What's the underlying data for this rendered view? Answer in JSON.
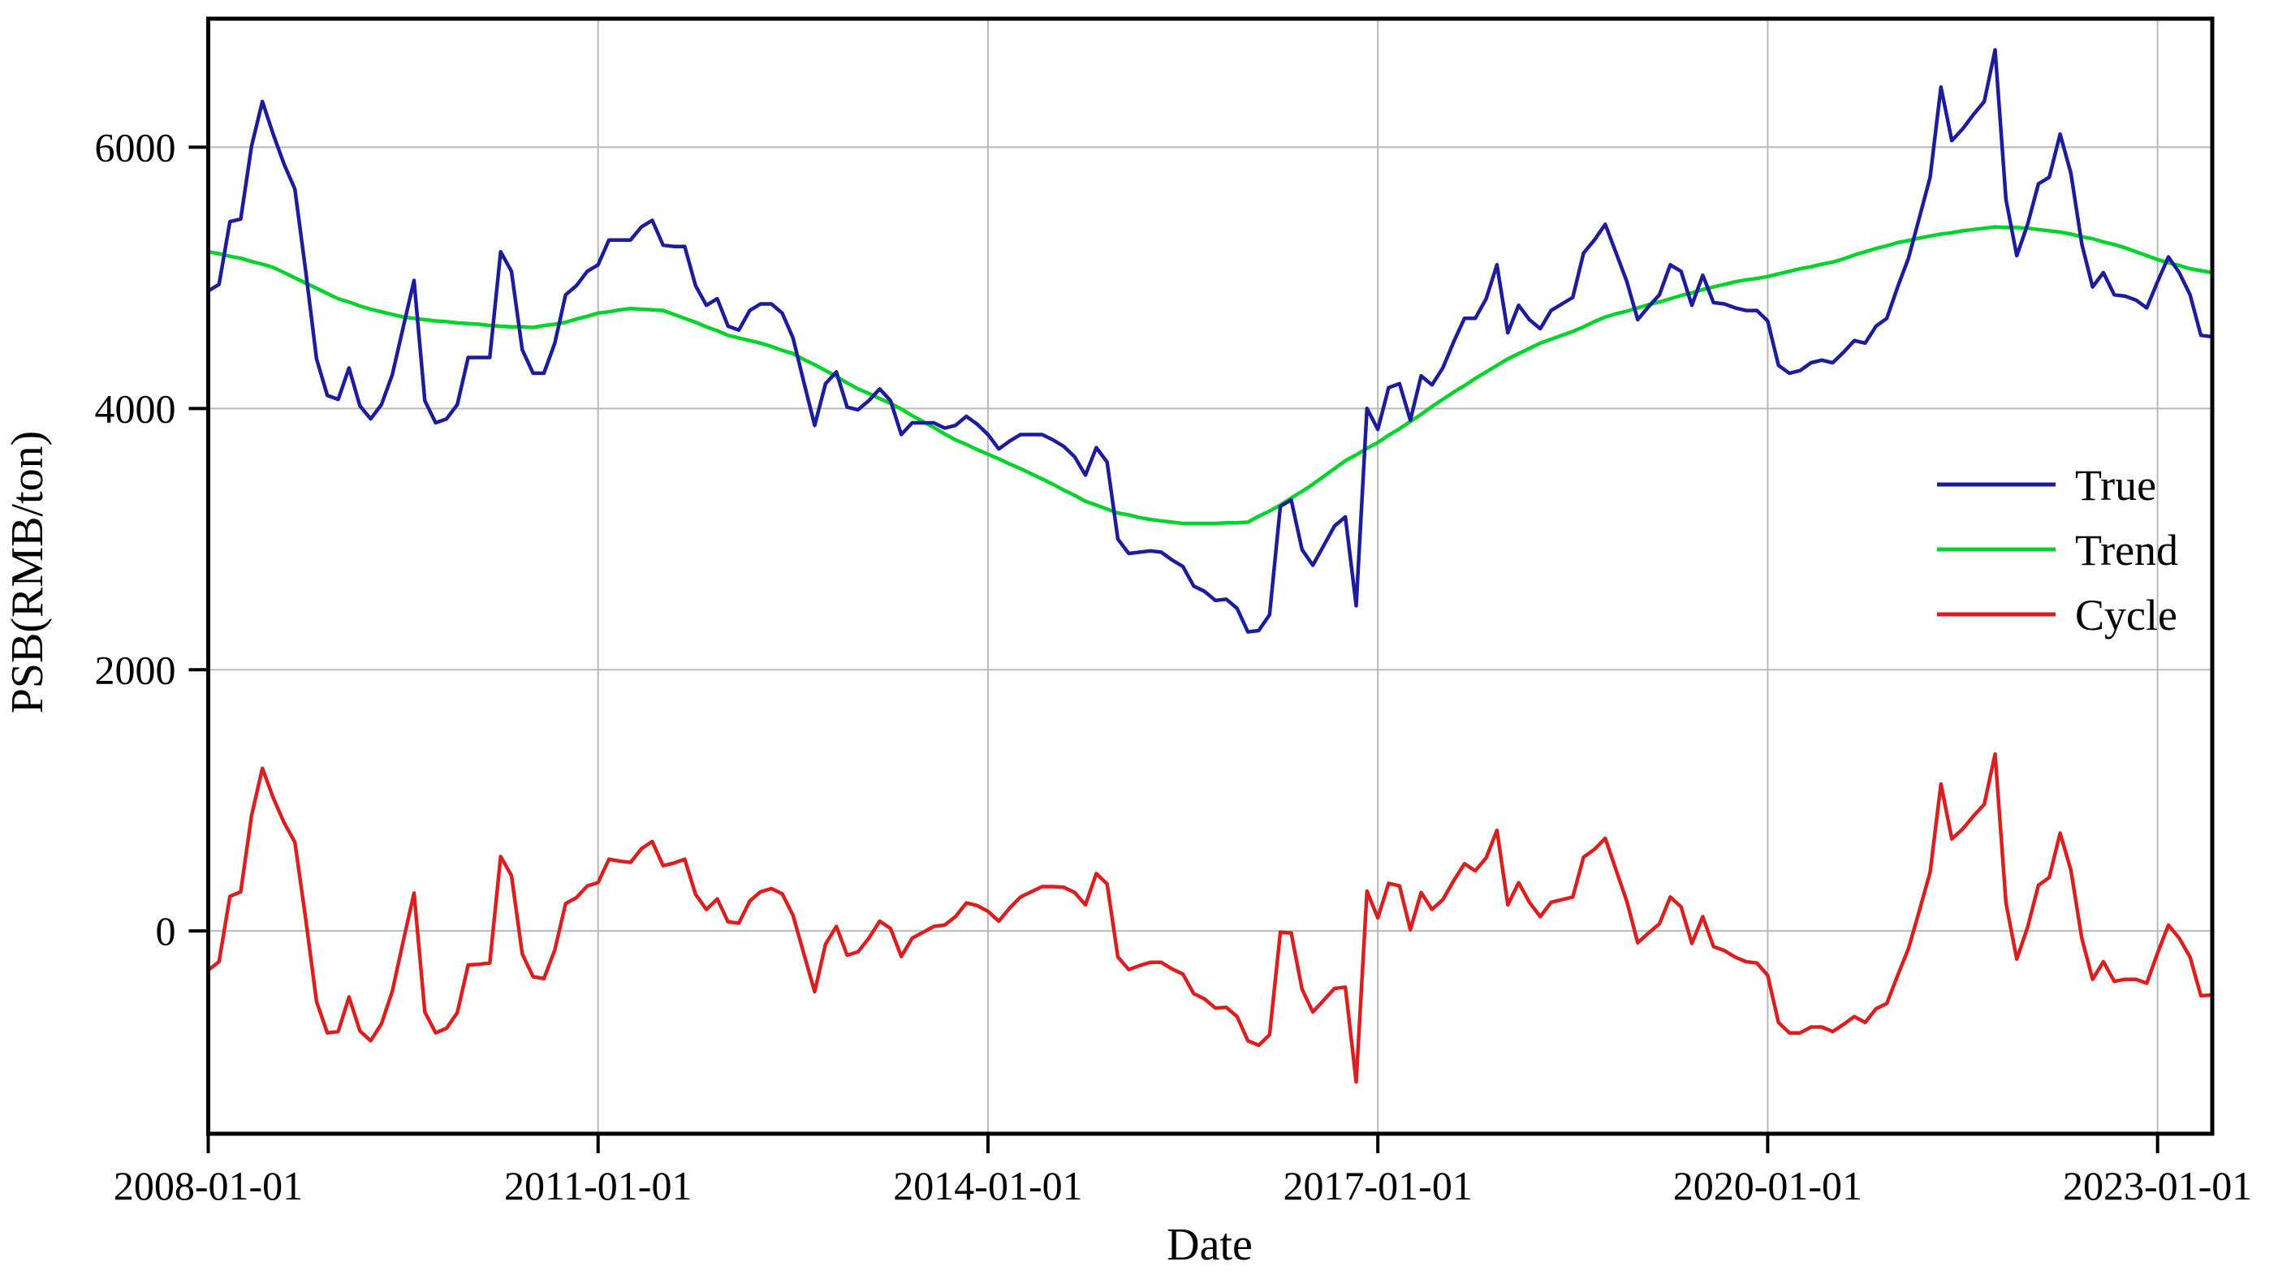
{
  "chart_data": {
    "type": "line",
    "title": "",
    "xlabel": "Date",
    "ylabel": "PSB(RMB/ton)",
    "x_start": "2008-01",
    "x_end": "2023-06",
    "x_freq": "monthly",
    "n_points": 186,
    "x_tick_labels": [
      "2008-01-01",
      "2011-01-01",
      "2014-01-01",
      "2017-01-01",
      "2020-01-01",
      "2023-01-01"
    ],
    "x_tick_month_index": [
      0,
      36,
      72,
      108,
      144,
      180
    ],
    "y_ticks": [
      0,
      2000,
      4000,
      6000
    ],
    "ylim": [
      -1552,
      6984
    ],
    "xlim_month_index": [
      0,
      185.05
    ],
    "grid": "on",
    "legend_position": "center-right",
    "colors": {
      "true": "#1c1c9c",
      "trend": "#00d32a",
      "cycle": "#dc1e1e",
      "grid": "#b9b9b9",
      "spine": "#000000"
    },
    "series": [
      {
        "name": "True",
        "color_key": "true",
        "values": [
          4900,
          4950,
          5430,
          5450,
          6010,
          6350,
          6100,
          5870,
          5680,
          5050,
          4380,
          4100,
          4070,
          4310,
          4020,
          3920,
          4030,
          4260,
          4620,
          4980,
          4060,
          3890,
          3920,
          4030,
          4390,
          4390,
          4390,
          5200,
          5050,
          4450,
          4270,
          4270,
          4500,
          4870,
          4940,
          5050,
          5100,
          5290,
          5290,
          5290,
          5390,
          5440,
          5250,
          5240,
          5240,
          4940,
          4790,
          4840,
          4630,
          4600,
          4750,
          4800,
          4800,
          4730,
          4540,
          4200,
          3870,
          4190,
          4280,
          4010,
          3990,
          4060,
          4150,
          4060,
          3800,
          3890,
          3890,
          3890,
          3850,
          3870,
          3940,
          3880,
          3800,
          3690,
          3750,
          3800,
          3800,
          3800,
          3760,
          3710,
          3630,
          3490,
          3700,
          3590,
          3000,
          2890,
          2900,
          2910,
          2900,
          2840,
          2790,
          2640,
          2600,
          2530,
          2540,
          2470,
          2290,
          2300,
          2420,
          3250,
          3300,
          2920,
          2800,
          2950,
          3100,
          3170,
          2490,
          4000,
          3840,
          4160,
          4190,
          3910,
          4250,
          4180,
          4310,
          4510,
          4690,
          4690,
          4840,
          5100,
          4580,
          4790,
          4680,
          4610,
          4750,
          4800,
          4850,
          5190,
          5290,
          5410,
          5190,
          4970,
          4680,
          4780,
          4870,
          5100,
          5050,
          4790,
          5020,
          4810,
          4800,
          4770,
          4750,
          4750,
          4670,
          4330,
          4270,
          4290,
          4350,
          4370,
          4350,
          4430,
          4520,
          4500,
          4630,
          4690,
          4930,
          5150,
          5460,
          5770,
          6460,
          6050,
          6140,
          6250,
          6350,
          6745,
          5600,
          5170,
          5410,
          5720,
          5770,
          6100,
          5800,
          5260,
          4930,
          5040,
          4870,
          4860,
          4830,
          4770,
          4970,
          5160,
          5040,
          4870,
          4560,
          4550
        ]
      },
      {
        "name": "Trend",
        "color_key": "trend",
        "values": [
          5200,
          5185,
          5165,
          5150,
          5125,
          5105,
          5080,
          5040,
          5000,
          4960,
          4920,
          4880,
          4840,
          4815,
          4785,
          4760,
          4740,
          4720,
          4700,
          4690,
          4680,
          4670,
          4665,
          4655,
          4650,
          4645,
          4635,
          4630,
          4625,
          4625,
          4620,
          4635,
          4645,
          4660,
          4685,
          4705,
          4730,
          4740,
          4755,
          4765,
          4760,
          4755,
          4750,
          4720,
          4690,
          4660,
          4625,
          4595,
          4560,
          4540,
          4520,
          4500,
          4475,
          4445,
          4420,
          4375,
          4335,
          4290,
          4245,
          4195,
          4150,
          4115,
          4075,
          4040,
          3995,
          3945,
          3900,
          3855,
          3805,
          3760,
          3725,
          3685,
          3650,
          3615,
          3575,
          3540,
          3500,
          3460,
          3420,
          3375,
          3335,
          3290,
          3260,
          3230,
          3200,
          3185,
          3165,
          3150,
          3140,
          3130,
          3120,
          3120,
          3120,
          3120,
          3125,
          3125,
          3130,
          3175,
          3215,
          3260,
          3315,
          3365,
          3420,
          3480,
          3540,
          3600,
          3645,
          3695,
          3740,
          3795,
          3845,
          3900,
          3955,
          4015,
          4070,
          4125,
          4175,
          4230,
          4280,
          4330,
          4380,
          4420,
          4460,
          4500,
          4530,
          4560,
          4590,
          4625,
          4665,
          4700,
          4725,
          4745,
          4770,
          4795,
          4815,
          4840,
          4865,
          4885,
          4910,
          4930,
          4950,
          4970,
          4985,
          4995,
          5010,
          5030,
          5050,
          5070,
          5085,
          5105,
          5120,
          5145,
          5175,
          5200,
          5225,
          5245,
          5270,
          5285,
          5305,
          5320,
          5335,
          5345,
          5360,
          5370,
          5380,
          5390,
          5385,
          5385,
          5380,
          5370,
          5360,
          5350,
          5335,
          5315,
          5300,
          5275,
          5255,
          5230,
          5200,
          5170,
          5140,
          5115,
          5095,
          5070,
          5055,
          5040
        ]
      },
      {
        "name": "Cycle",
        "color_key": "cycle",
        "values": [
          -300,
          -235,
          265,
          300,
          885,
          1245,
          1020,
          830,
          680,
          90,
          -540,
          -780,
          -770,
          -505,
          -765,
          -840,
          -710,
          -460,
          -80,
          290,
          -620,
          -780,
          -745,
          -625,
          -260,
          -255,
          -245,
          570,
          425,
          -175,
          -350,
          -365,
          -145,
          210,
          255,
          345,
          370,
          550,
          535,
          525,
          630,
          685,
          500,
          520,
          550,
          280,
          165,
          245,
          70,
          60,
          230,
          300,
          325,
          285,
          120,
          -175,
          -465,
          -100,
          35,
          -185,
          -160,
          -55,
          75,
          20,
          -195,
          -55,
          -10,
          35,
          45,
          110,
          215,
          195,
          150,
          75,
          175,
          260,
          300,
          340,
          340,
          335,
          295,
          200,
          440,
          360,
          -200,
          -295,
          -265,
          -240,
          -240,
          -290,
          -330,
          -480,
          -520,
          -590,
          -585,
          -655,
          -840,
          -875,
          -795,
          -10,
          -15,
          -445,
          -620,
          -530,
          -440,
          -430,
          -1155,
          305,
          100,
          365,
          345,
          10,
          295,
          165,
          240,
          385,
          515,
          460,
          560,
          770,
          200,
          370,
          220,
          110,
          220,
          240,
          260,
          565,
          625,
          710,
          465,
          225,
          -90,
          -15,
          55,
          260,
          185,
          -95,
          110,
          -120,
          -150,
          -200,
          -235,
          -245,
          -340,
          -700,
          -780,
          -780,
          -735,
          -735,
          -770,
          -715,
          -655,
          -700,
          -595,
          -555,
          -340,
          -135,
          155,
          450,
          1125,
          705,
          780,
          880,
          970,
          1355,
          215,
          -215,
          30,
          350,
          410,
          750,
          465,
          -55,
          -370,
          -235,
          -385,
          -370,
          -370,
          -400,
          -170,
          45,
          -55,
          -200,
          -495,
          -490
        ]
      }
    ],
    "legend": [
      "True",
      "Trend",
      "Cycle"
    ]
  }
}
